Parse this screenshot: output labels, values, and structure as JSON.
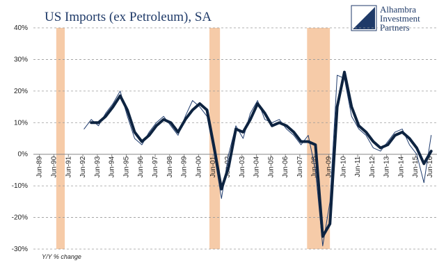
{
  "chart_data": {
    "type": "line",
    "title": "US Imports (ex Petroleum), SA",
    "note": "Y/Y % change",
    "x": [
      1992.5,
      1993.0,
      1993.5,
      1994.0,
      1994.5,
      1995.0,
      1995.5,
      1996.0,
      1996.5,
      1997.0,
      1997.5,
      1998.0,
      1998.5,
      1999.0,
      1999.5,
      2000.0,
      2000.5,
      2001.0,
      2001.5,
      2002.0,
      2002.5,
      2003.0,
      2003.5,
      2004.0,
      2004.5,
      2005.0,
      2005.5,
      2006.0,
      2006.5,
      2007.0,
      2007.5,
      2008.0,
      2008.5,
      2009.0,
      2009.5,
      2010.0,
      2010.5,
      2011.0,
      2011.5,
      2012.0,
      2012.5,
      2013.0,
      2013.5,
      2014.0,
      2014.5,
      2015.0,
      2015.5,
      2016.0,
      2016.5
    ],
    "series": [
      {
        "color": "#1f3c6e",
        "width": 1,
        "values": [
          8,
          11,
          9,
          13,
          16,
          20,
          12,
          5,
          3,
          7,
          10,
          12,
          9,
          6,
          12,
          17,
          15,
          12,
          0,
          -14,
          0,
          9,
          5,
          13,
          17,
          11,
          10,
          11,
          8,
          6,
          3,
          6,
          -5,
          -29,
          -15,
          25,
          24,
          12,
          8,
          6,
          2,
          1,
          4,
          7,
          8,
          3,
          0,
          -9,
          6
        ]
      },
      {
        "color": "#0d2340",
        "width": 4,
        "values": [
          null,
          10,
          10,
          12,
          15,
          18.5,
          14,
          7,
          4,
          6,
          9,
          11,
          10,
          7,
          11,
          14,
          16,
          14,
          2,
          -11,
          -4,
          8,
          7,
          11,
          16,
          13,
          9,
          10,
          9,
          7,
          4,
          4,
          3,
          -26,
          -22,
          15,
          26,
          15,
          9,
          7,
          4,
          2,
          3,
          6,
          7,
          5,
          2,
          -3,
          1
        ]
      }
    ],
    "shaded_periods": [
      [
        1990.58,
        1991.17
      ],
      [
        2001.17,
        2001.9
      ],
      [
        2007.92,
        2009.5
      ]
    ],
    "shade_color": "#f6cba8",
    "xlim": [
      1989.0,
      2016.9
    ],
    "xticks": [
      {
        "value": 1989.42,
        "label": "Jun-89"
      },
      {
        "value": 1990.42,
        "label": "Jun-90"
      },
      {
        "value": 1991.42,
        "label": "Jun-91"
      },
      {
        "value": 1992.42,
        "label": "Jun-92"
      },
      {
        "value": 1993.42,
        "label": "Jun-93"
      },
      {
        "value": 1994.42,
        "label": "Jun-94"
      },
      {
        "value": 1995.42,
        "label": "Jun-95"
      },
      {
        "value": 1996.42,
        "label": "Jun-96"
      },
      {
        "value": 1997.42,
        "label": "Jun-97"
      },
      {
        "value": 1998.42,
        "label": "Jun-98"
      },
      {
        "value": 1999.42,
        "label": "Jun-99"
      },
      {
        "value": 2000.42,
        "label": "Jun-00"
      },
      {
        "value": 2001.42,
        "label": "Jun-01"
      },
      {
        "value": 2002.42,
        "label": "Jun-02"
      },
      {
        "value": 2003.42,
        "label": "Jun-03"
      },
      {
        "value": 2004.42,
        "label": "Jun-04"
      },
      {
        "value": 2005.42,
        "label": "Jun-05"
      },
      {
        "value": 2006.42,
        "label": "Jun-06"
      },
      {
        "value": 2007.42,
        "label": "Jun-07"
      },
      {
        "value": 2008.42,
        "label": "Jun-08"
      },
      {
        "value": 2009.42,
        "label": "Jun-09"
      },
      {
        "value": 2010.42,
        "label": "Jun-10"
      },
      {
        "value": 2011.42,
        "label": "Jun-11"
      },
      {
        "value": 2012.42,
        "label": "Jun-12"
      },
      {
        "value": 2013.42,
        "label": "Jun-13"
      },
      {
        "value": 2014.42,
        "label": "Jun-14"
      },
      {
        "value": 2015.42,
        "label": "Jun-15"
      },
      {
        "value": 2016.42,
        "label": "Jun-16"
      }
    ],
    "ylim": [
      -30,
      40
    ],
    "yticks": [
      {
        "value": -30,
        "label": "-30%"
      },
      {
        "value": -20,
        "label": "-20%"
      },
      {
        "value": -10,
        "label": "-10%"
      },
      {
        "value": 0,
        "label": "0%"
      },
      {
        "value": 10,
        "label": "10%"
      },
      {
        "value": 20,
        "label": "20%"
      },
      {
        "value": 30,
        "label": "30%"
      },
      {
        "value": 40,
        "label": "40%"
      }
    ],
    "grid": true
  },
  "logo": [
    "Alhambra",
    "Investment",
    "Partners"
  ]
}
